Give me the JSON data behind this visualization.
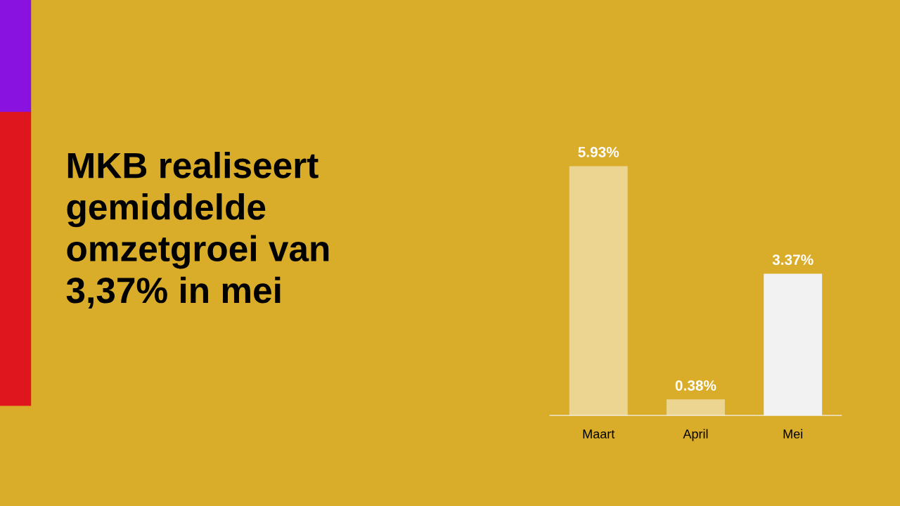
{
  "chart_data": {
    "type": "bar",
    "title": "MKB realiseert\ngemiddelde\nomzetgroei van\n3,37% in mei",
    "categories": [
      "Maart",
      "April",
      "Mei"
    ],
    "values": [
      5.93,
      0.38,
      3.37
    ],
    "colors": [
      "#ecd591",
      "#ecd591",
      "#f2f2f2"
    ],
    "value_labels": [
      "5.93%",
      "0.38%",
      "3.37%"
    ],
    "grid": false,
    "legend": false
  }
}
